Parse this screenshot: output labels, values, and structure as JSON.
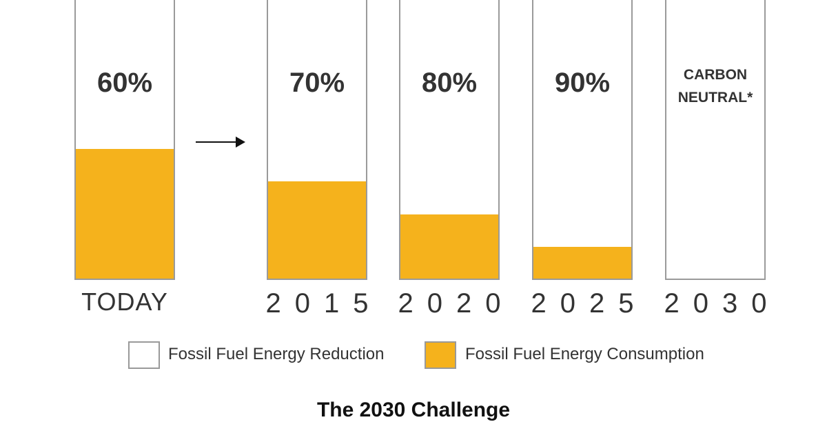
{
  "chart_data": {
    "type": "stacked-bar",
    "title": "The 2030 Challenge",
    "categories": [
      "TODAY",
      "2015",
      "2020",
      "2025",
      "2030"
    ],
    "series": [
      {
        "name": "Fossil Fuel Energy Consumption",
        "color": "#f5b21c",
        "values": [
          40,
          30,
          20,
          10,
          0
        ]
      },
      {
        "name": "Fossil Fuel Energy Reduction",
        "color": "#ffffff",
        "values": [
          60,
          70,
          80,
          90,
          100
        ],
        "value_labels": [
          "60%",
          "70%",
          "80%",
          "90%",
          "CARBON NEUTRAL*"
        ]
      }
    ],
    "ylim": [
      0,
      100
    ]
  }
}
